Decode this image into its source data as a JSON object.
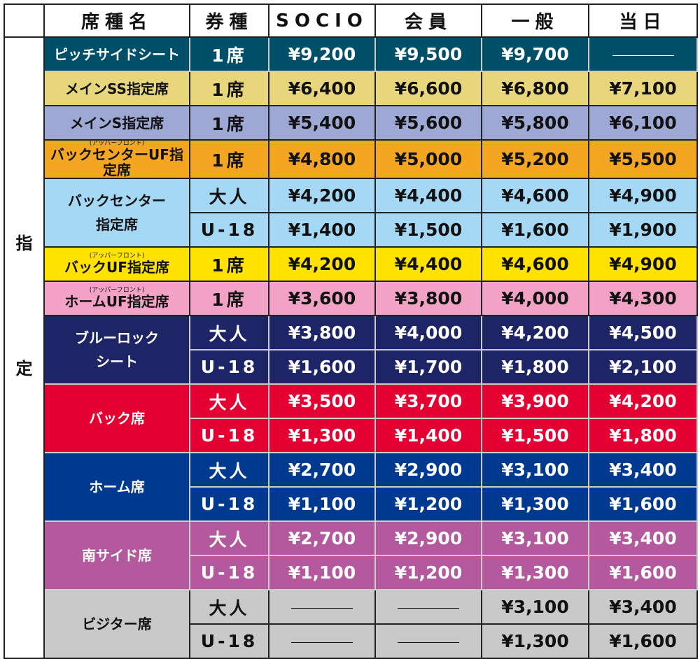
{
  "headers": [
    "",
    "席種名",
    "券種",
    "SOCIO",
    "会員",
    "一般",
    "当日"
  ],
  "category": {
    "chars": [
      "指",
      "定"
    ]
  },
  "dash": "———",
  "seats": [
    {
      "name": "ピッチサイドシート",
      "ruby": "",
      "bg": "#004f68",
      "fg": "#ffffff",
      "dark": true,
      "rows": [
        {
          "type": "1席",
          "prices": [
            "¥9,200",
            "¥9,500",
            "¥9,700",
            null
          ]
        }
      ]
    },
    {
      "name": "メインSS指定席",
      "ruby": "",
      "bg": "#e8d67c",
      "fg": "#111111",
      "dark": false,
      "rows": [
        {
          "type": "1席",
          "prices": [
            "¥6,400",
            "¥6,600",
            "¥6,800",
            "¥7,100"
          ]
        }
      ]
    },
    {
      "name": "メインS指定席",
      "ruby": "",
      "bg": "#9ea8d4",
      "fg": "#111111",
      "dark": false,
      "rows": [
        {
          "type": "1席",
          "prices": [
            "¥5,400",
            "¥5,600",
            "¥5,800",
            "¥6,100"
          ]
        }
      ]
    },
    {
      "name": "バックセンターUF指定席",
      "ruby": "(アッパーフロント)",
      "bg": "#f5a620",
      "fg": "#111111",
      "dark": false,
      "rows": [
        {
          "type": "1席",
          "prices": [
            "¥4,800",
            "¥5,000",
            "¥5,200",
            "¥5,500"
          ]
        }
      ]
    },
    {
      "name": "バックセンター\n指定席",
      "ruby": "",
      "bg": "#a5d8f4",
      "fg": "#111111",
      "dark": false,
      "rows": [
        {
          "type": "大人",
          "prices": [
            "¥4,200",
            "¥4,400",
            "¥4,600",
            "¥4,900"
          ]
        },
        {
          "type": "U-18",
          "prices": [
            "¥1,400",
            "¥1,500",
            "¥1,600",
            "¥1,900"
          ]
        }
      ]
    },
    {
      "name": "バックUF指定席",
      "ruby": "(アッパーフロント)",
      "bg": "#ffe200",
      "fg": "#111111",
      "dark": false,
      "rows": [
        {
          "type": "1席",
          "prices": [
            "¥4,200",
            "¥4,400",
            "¥4,600",
            "¥4,900"
          ]
        }
      ]
    },
    {
      "name": "ホームUF指定席",
      "ruby": "(アッパーフロント)",
      "bg": "#f2a2c4",
      "fg": "#111111",
      "dark": false,
      "rows": [
        {
          "type": "1席",
          "prices": [
            "¥3,600",
            "¥3,800",
            "¥4,000",
            "¥4,300"
          ]
        }
      ]
    },
    {
      "name": "ブルーロック\nシート",
      "ruby": "",
      "bg": "#1e2567",
      "fg": "#ffffff",
      "dark": true,
      "rows": [
        {
          "type": "大人",
          "prices": [
            "¥3,800",
            "¥4,000",
            "¥4,200",
            "¥4,500"
          ]
        },
        {
          "type": "U-18",
          "prices": [
            "¥1,600",
            "¥1,700",
            "¥1,800",
            "¥2,100"
          ]
        }
      ]
    },
    {
      "name": "バック席",
      "ruby": "",
      "bg": "#e50032",
      "fg": "#ffffff",
      "dark": true,
      "rows": [
        {
          "type": "大人",
          "prices": [
            "¥3,500",
            "¥3,700",
            "¥3,900",
            "¥4,200"
          ]
        },
        {
          "type": "U-18",
          "prices": [
            "¥1,300",
            "¥1,400",
            "¥1,500",
            "¥1,800"
          ]
        }
      ]
    },
    {
      "name": "ホーム席",
      "ruby": "",
      "bg": "#003990",
      "fg": "#ffffff",
      "dark": true,
      "rows": [
        {
          "type": "大人",
          "prices": [
            "¥2,700",
            "¥2,900",
            "¥3,100",
            "¥3,400"
          ]
        },
        {
          "type": "U-18",
          "prices": [
            "¥1,100",
            "¥1,200",
            "¥1,300",
            "¥1,600"
          ]
        }
      ]
    },
    {
      "name": "南サイド席",
      "ruby": "",
      "bg": "#b5599e",
      "fg": "#ffffff",
      "dark": true,
      "rows": [
        {
          "type": "大人",
          "prices": [
            "¥2,700",
            "¥2,900",
            "¥3,100",
            "¥3,400"
          ]
        },
        {
          "type": "U-18",
          "prices": [
            "¥1,100",
            "¥1,200",
            "¥1,300",
            "¥1,600"
          ]
        }
      ]
    },
    {
      "name": "ビジター席",
      "ruby": "",
      "bg": "#c9c9c9",
      "fg": "#111111",
      "dark": false,
      "rows": [
        {
          "type": "大人",
          "prices": [
            null,
            null,
            "¥3,100",
            "¥3,400"
          ]
        },
        {
          "type": "U-18",
          "prices": [
            null,
            null,
            "¥1,300",
            "¥1,600"
          ]
        }
      ]
    }
  ]
}
